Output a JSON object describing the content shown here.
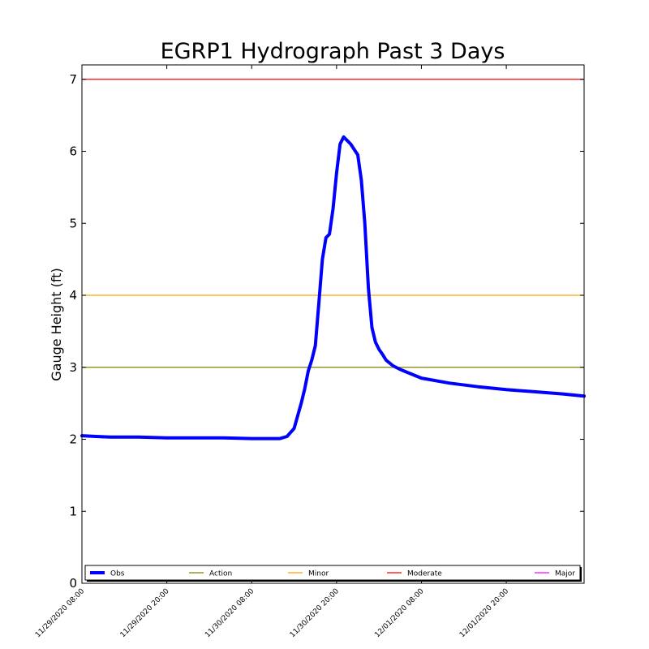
{
  "chart_data": {
    "type": "line",
    "title": "EGRP1 Hydrograph Past 3 Days",
    "xlabel": "",
    "ylabel": "Gauge Height (ft)",
    "ylim": [
      0,
      7.2
    ],
    "yticks": [
      0,
      1,
      2,
      3,
      4,
      5,
      6,
      7
    ],
    "xlim": [
      "2020-11-29T08:00",
      "2020-12-02T07:00"
    ],
    "xticks": [
      {
        "at": "2020-11-29T08:00",
        "label": "11/29/2020 08:00"
      },
      {
        "at": "2020-11-29T20:00",
        "label": "11/29/2020 20:00"
      },
      {
        "at": "2020-11-30T08:00",
        "label": "11/30/2020 08:00"
      },
      {
        "at": "2020-11-30T20:00",
        "label": "11/30/2020 20:00"
      },
      {
        "at": "2020-12-01T08:00",
        "label": "12/01/2020 08:00"
      },
      {
        "at": "2020-12-01T20:00",
        "label": "12/01/2020 20:00"
      }
    ],
    "grid": false,
    "legend_position": "bottom",
    "series": [
      {
        "name": "Obs",
        "color": "#0000ff",
        "x": [
          "2020-11-29T08:00",
          "2020-11-29T10:00",
          "2020-11-29T12:00",
          "2020-11-29T16:00",
          "2020-11-29T20:00",
          "2020-11-30T00:00",
          "2020-11-30T04:00",
          "2020-11-30T08:00",
          "2020-11-30T12:00",
          "2020-11-30T13:00",
          "2020-11-30T14:00",
          "2020-11-30T15:00",
          "2020-11-30T15:30",
          "2020-11-30T16:00",
          "2020-11-30T16:30",
          "2020-11-30T17:00",
          "2020-11-30T17:30",
          "2020-11-30T18:00",
          "2020-11-30T18:30",
          "2020-11-30T19:00",
          "2020-11-30T19:30",
          "2020-11-30T20:00",
          "2020-11-30T20:30",
          "2020-11-30T21:00",
          "2020-11-30T22:00",
          "2020-11-30T23:00",
          "2020-11-30T23:30",
          "2020-12-01T00:00",
          "2020-12-01T00:30",
          "2020-12-01T01:00",
          "2020-12-01T01:30",
          "2020-12-01T02:00",
          "2020-12-01T02:30",
          "2020-12-01T03:00",
          "2020-12-01T04:00",
          "2020-12-01T05:00",
          "2020-12-01T06:00",
          "2020-12-01T08:00",
          "2020-12-01T12:00",
          "2020-12-01T16:00",
          "2020-12-01T20:00",
          "2020-12-02T00:00",
          "2020-12-02T04:00",
          "2020-12-02T07:00"
        ],
        "values": [
          2.05,
          2.04,
          2.03,
          2.03,
          2.02,
          2.02,
          2.02,
          2.01,
          2.01,
          2.04,
          2.15,
          2.5,
          2.7,
          2.95,
          3.1,
          3.3,
          3.9,
          4.5,
          4.8,
          4.85,
          5.2,
          5.7,
          6.1,
          6.2,
          6.1,
          5.95,
          5.6,
          5.0,
          4.1,
          3.55,
          3.35,
          3.25,
          3.18,
          3.1,
          3.02,
          2.97,
          2.93,
          2.85,
          2.78,
          2.73,
          2.69,
          2.66,
          2.63,
          2.6
        ]
      },
      {
        "name": "Action",
        "color": "#808000",
        "value": 3
      },
      {
        "name": "Minor",
        "color": "#ffa500",
        "value": 4
      },
      {
        "name": "Moderate",
        "color": "#ff0000",
        "value": 7
      },
      {
        "name": "Major",
        "color": "#ff00ff",
        "value": null
      }
    ]
  }
}
